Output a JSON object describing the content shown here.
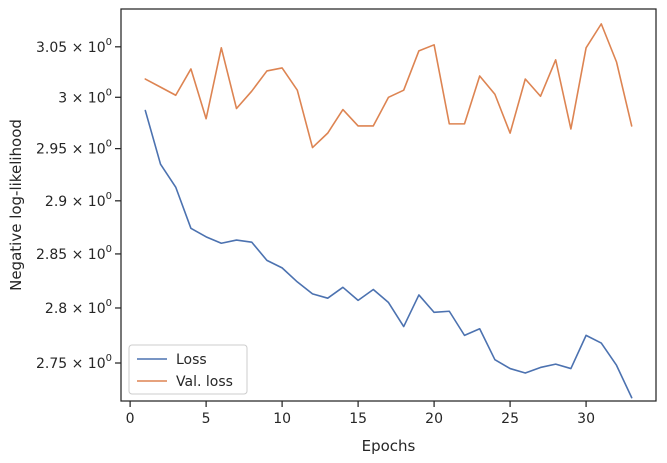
{
  "chart_data": {
    "type": "line",
    "xlabel": "Epochs",
    "ylabel": "Negative log-likelihood",
    "y_scale": "log",
    "xlim": [
      -0.6,
      34.6
    ],
    "ylim": [
      2.716,
      3.088
    ],
    "xticks": [
      0,
      5,
      10,
      15,
      20,
      25,
      30
    ],
    "xtick_labels": [
      "0",
      "5",
      "10",
      "15",
      "20",
      "25",
      "30"
    ],
    "yticks": [
      2.75,
      2.8,
      2.85,
      2.9,
      2.95,
      3.0,
      3.05
    ],
    "ytick_labels": [
      {
        "mant": "2.75",
        "exp": "0"
      },
      {
        "mant": "2.8",
        "exp": "0"
      },
      {
        "mant": "2.85",
        "exp": "0"
      },
      {
        "mant": "2.9",
        "exp": "0"
      },
      {
        "mant": "2.95",
        "exp": "0"
      },
      {
        "mant": "3",
        "exp": "0"
      },
      {
        "mant": "3.05",
        "exp": "0"
      }
    ],
    "grid": false,
    "legend_position": "lower-left",
    "x": [
      1,
      2,
      3,
      4,
      5,
      6,
      7,
      8,
      9,
      10,
      11,
      12,
      13,
      14,
      15,
      16,
      17,
      18,
      19,
      20,
      21,
      22,
      23,
      24,
      25,
      26,
      27,
      28,
      29,
      30,
      31,
      32,
      33
    ],
    "series": [
      {
        "name": "Loss",
        "color": "#4c72b0",
        "values": [
          2.987,
          2.935,
          2.913,
          2.874,
          2.866,
          2.86,
          2.863,
          2.861,
          2.844,
          2.837,
          2.824,
          2.813,
          2.809,
          2.819,
          2.807,
          2.817,
          2.805,
          2.783,
          2.812,
          2.796,
          2.797,
          2.775,
          2.781,
          2.753,
          2.745,
          2.741,
          2.746,
          2.749,
          2.745,
          2.775,
          2.768,
          2.748,
          2.719
        ]
      },
      {
        "name": "Val. loss",
        "color": "#dd8452",
        "values": [
          3.018,
          3.01,
          3.002,
          3.028,
          2.979,
          3.049,
          2.989,
          3.006,
          3.026,
          3.029,
          3.007,
          2.951,
          2.965,
          2.988,
          2.972,
          2.972,
          3.0,
          3.007,
          3.046,
          3.052,
          2.974,
          2.974,
          3.021,
          3.003,
          2.965,
          3.018,
          3.001,
          3.037,
          2.969,
          3.049,
          3.073,
          3.035,
          2.972
        ]
      }
    ]
  }
}
